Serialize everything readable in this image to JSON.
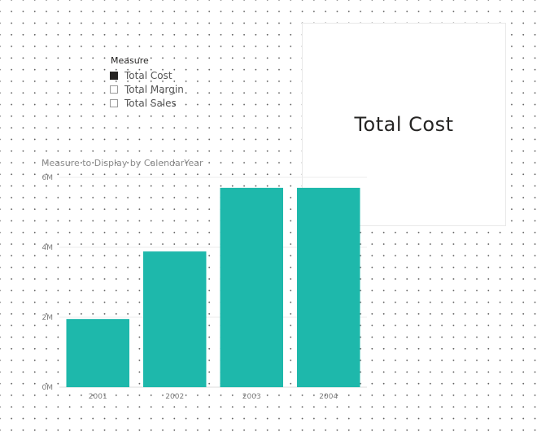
{
  "slicer": {
    "title": "Measure",
    "items": [
      {
        "label": "Total Cost",
        "checked": true
      },
      {
        "label": "Total Margin",
        "checked": false
      },
      {
        "label": "Total Sales",
        "checked": false
      }
    ]
  },
  "card": {
    "value": "Total Cost"
  },
  "chart": {
    "title": "Measure to Display by CalendarYear"
  },
  "chart_data": {
    "type": "bar",
    "title": "Measure to Display by CalendarYear",
    "xlabel": "",
    "ylabel": "",
    "categories": [
      "2001",
      "2002",
      "2003",
      "2004"
    ],
    "values": [
      1950000,
      3880000,
      5700000,
      5700000
    ],
    "ylim": [
      0,
      6000000
    ],
    "yticks": [
      0,
      2000000,
      4000000,
      6000000
    ],
    "ytick_labels": [
      "0M",
      "2M",
      "4M",
      "6M"
    ],
    "bar_color": "#1EB8AB",
    "grid": true,
    "legend": "none"
  },
  "colors": {
    "accent": "#1EB8AB",
    "text": "#252423"
  }
}
